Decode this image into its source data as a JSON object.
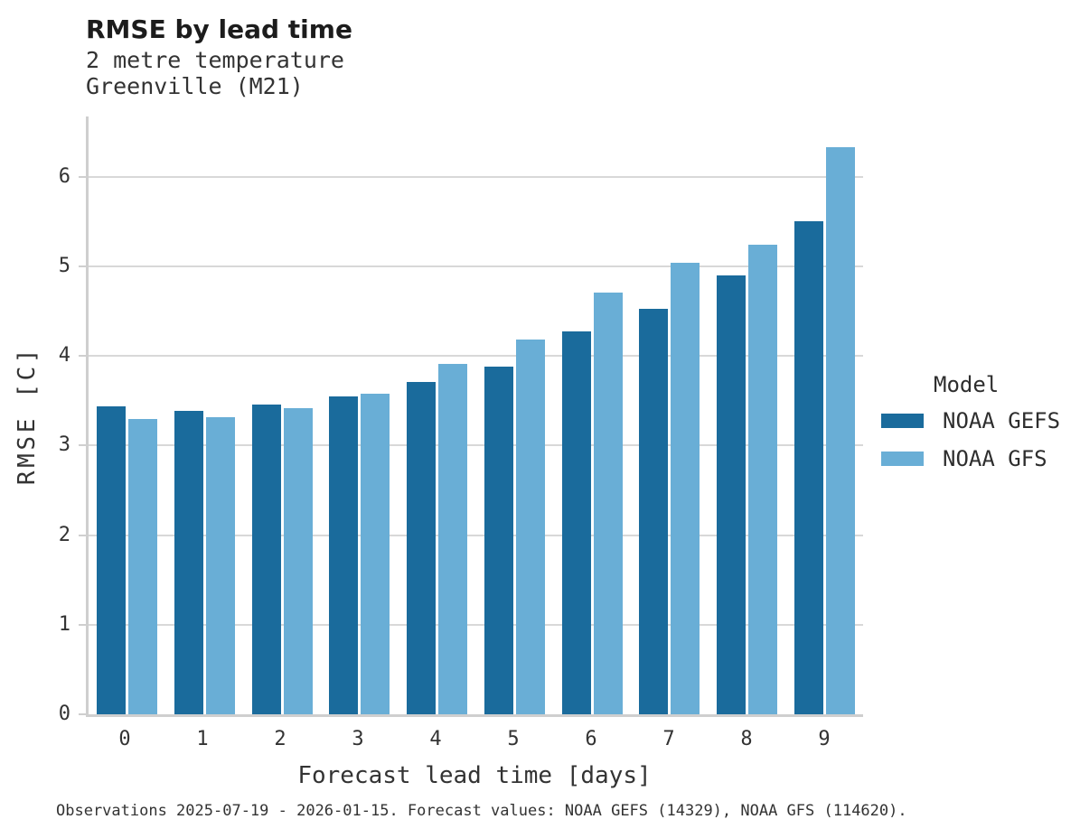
{
  "caption": "Observations 2025-07-19 - 2026-01-15. Forecast values: NOAA GEFS (14329), NOAA GFS (114620).",
  "colors": {
    "gefs_blue": "#1a6b9c",
    "gfs_blue": "#69aed6",
    "gridline": "#d8d8d8",
    "axis_spine": "#cfcfcf",
    "text": "#333333",
    "title_text": "#1c1c1c"
  },
  "chart_data": {
    "type": "bar",
    "title": "RMSE by lead time",
    "subtitle": [
      "2 metre temperature",
      "Greenville (M21)"
    ],
    "xlabel": "Forecast lead time [days]",
    "ylabel": "RMSE [C]",
    "categories": [
      "0",
      "1",
      "2",
      "3",
      "4",
      "5",
      "6",
      "7",
      "8",
      "9"
    ],
    "series": [
      {
        "name": "NOAA GEFS",
        "color": "#1a6b9c",
        "values": [
          3.44,
          3.39,
          3.46,
          3.55,
          3.71,
          3.88,
          4.27,
          4.52,
          4.9,
          5.5
        ]
      },
      {
        "name": "NOAA GFS",
        "color": "#69aed6",
        "values": [
          3.29,
          3.31,
          3.42,
          3.58,
          3.91,
          4.18,
          4.71,
          5.04,
          5.24,
          6.33
        ]
      }
    ],
    "ylim": [
      0,
      6.67
    ],
    "yticks": [
      0,
      1,
      2,
      3,
      4,
      5,
      6
    ],
    "grid": true,
    "legend_title": "Model",
    "legend_position": "right"
  }
}
